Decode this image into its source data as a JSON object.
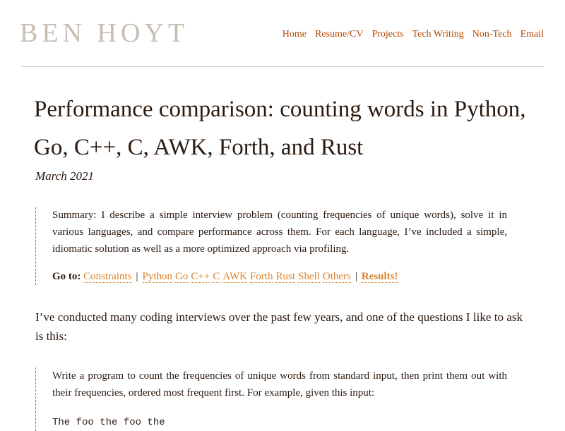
{
  "site": {
    "title": "BEN HOYT"
  },
  "nav": {
    "items": [
      "Home",
      "Resume/CV",
      "Projects",
      "Tech Writing",
      "Non-Tech",
      "Email"
    ]
  },
  "article": {
    "title": "Performance comparison: counting words in Python, Go, C++, C, AWK, Forth, and Rust",
    "date": "March 2021",
    "summary": "Summary: I describe a simple interview problem (counting frequencies of unique words), solve it in various languages, and compare performance across them. For each language, I’ve included a simple, idiomatic solution as well as a more optimized approach via profiling.",
    "goto_label": "Go to:",
    "goto_links": {
      "constraints": "Constraints",
      "separator": "|",
      "languages": [
        "Python",
        "Go",
        "C++",
        "C",
        "AWK",
        "Forth",
        "Rust",
        "Shell",
        "Others"
      ],
      "results": "Results!"
    },
    "intro": "I’ve conducted many coding interviews over the past few years, and one of the questions I like to ask is this:",
    "question": "Write a program to count the frequencies of unique words from standard input, then print them out with their frequencies, ordered most frequent first. For example, given this input:",
    "code_sample": "The foo the foo the"
  }
}
